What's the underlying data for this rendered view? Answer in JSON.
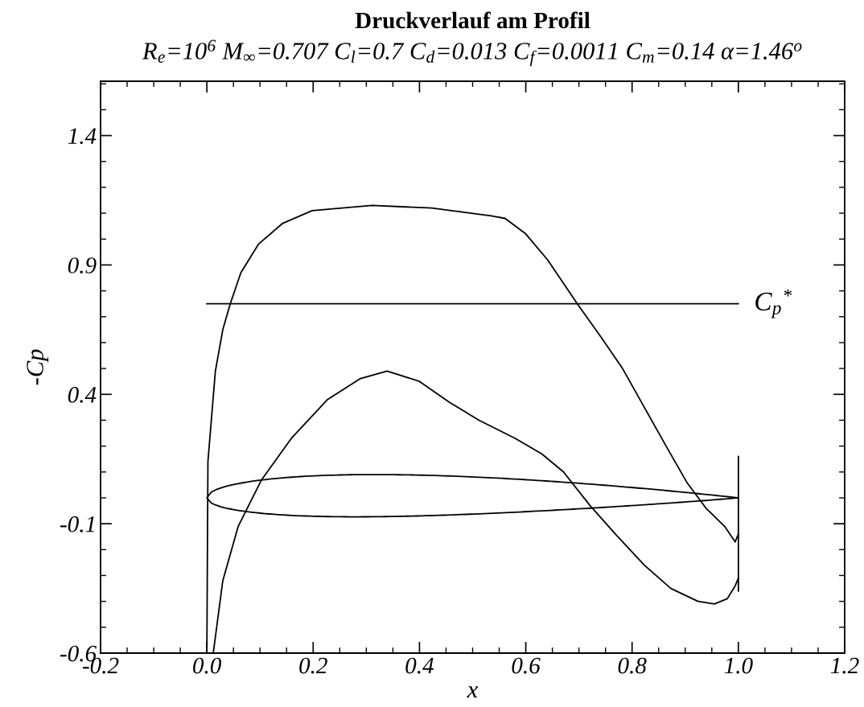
{
  "chart_data": {
    "type": "line",
    "title": "Druckverlauf am Profil",
    "subtitle": "R$_{e}$=10$^{6}$ M$_{∞}$=0.707 C$_{l}$=0.7 C$_{d}$=0.013 C$_{f}$=0.0011 C$_{m}$=0.14 α=1.46$^{o}$",
    "xlabel": "x",
    "ylabel": "-Cp",
    "xlim": [
      -0.2,
      1.2
    ],
    "xticks": [
      {
        "value": -0.2,
        "label": "-0.2"
      },
      {
        "value": 0,
        "label": "0.0"
      },
      {
        "value": 0.2,
        "label": "0.2"
      },
      {
        "value": 0.4,
        "label": "0.4"
      },
      {
        "value": 0.6,
        "label": "0.6"
      },
      {
        "value": 0.8,
        "label": "0.8"
      },
      {
        "value": 1,
        "label": "1.0"
      },
      {
        "value": 1.2,
        "label": "1.2"
      }
    ],
    "ylim": [
      -0.6,
      1.61
    ],
    "yticks": [
      {
        "value": -0.6,
        "label": "-0.6"
      },
      {
        "value": -0.1,
        "label": "-0.1"
      },
      {
        "value": 0.4,
        "label": "0.4"
      },
      {
        "value": 0.9,
        "label": "0.9"
      },
      {
        "value": 1.4,
        "label": "1.4"
      }
    ],
    "grid": false,
    "legend": false,
    "marker": "none",
    "line_style": "solid",
    "series": [
      {
        "color": "#000000",
        "x": [
          0.0,
          0.002,
          0.016,
          0.03,
          0.044,
          0.064,
          0.097,
          0.142,
          0.198,
          0.311,
          0.423,
          0.535,
          0.561,
          0.6,
          0.641,
          0.697,
          0.742,
          0.782,
          0.823,
          0.864,
          0.903,
          0.939,
          0.974,
          0.994,
          1.0
        ],
        "values": [
          -0.6,
          0.14,
          0.49,
          0.65,
          0.75,
          0.87,
          0.98,
          1.06,
          1.11,
          1.13,
          1.12,
          1.09,
          1.08,
          1.02,
          0.92,
          0.75,
          0.62,
          0.5,
          0.35,
          0.2,
          0.06,
          -0.04,
          -0.11,
          -0.17,
          -0.14
        ]
      },
      {
        "color": "#000000",
        "x": [
          0.012,
          0.03,
          0.059,
          0.103,
          0.159,
          0.227,
          0.288,
          0.339,
          0.4,
          0.456,
          0.512,
          0.58,
          0.63,
          0.671,
          0.721,
          0.773,
          0.823,
          0.873,
          0.924,
          0.955,
          0.979,
          0.994,
          1.0
        ],
        "values": [
          -0.6,
          -0.32,
          -0.11,
          0.07,
          0.23,
          0.38,
          0.46,
          0.49,
          0.45,
          0.37,
          0.3,
          0.23,
          0.17,
          0.1,
          -0.03,
          -0.15,
          -0.26,
          -0.35,
          -0.4,
          -0.41,
          -0.39,
          -0.34,
          -0.31
        ]
      },
      {
        "color": "#000000",
        "x": [
          1.0,
          1.0
        ],
        "values": [
          0.16,
          -0.36
        ]
      },
      {
        "color": "#000000",
        "x": [
          0.0,
          1.0
        ],
        "values": [
          0.75,
          0.75
        ]
      }
    ],
    "annotations": [
      {
        "text": "C$_{p}$$^{*}$",
        "x": 1.0,
        "y": 0.75
      }
    ]
  }
}
